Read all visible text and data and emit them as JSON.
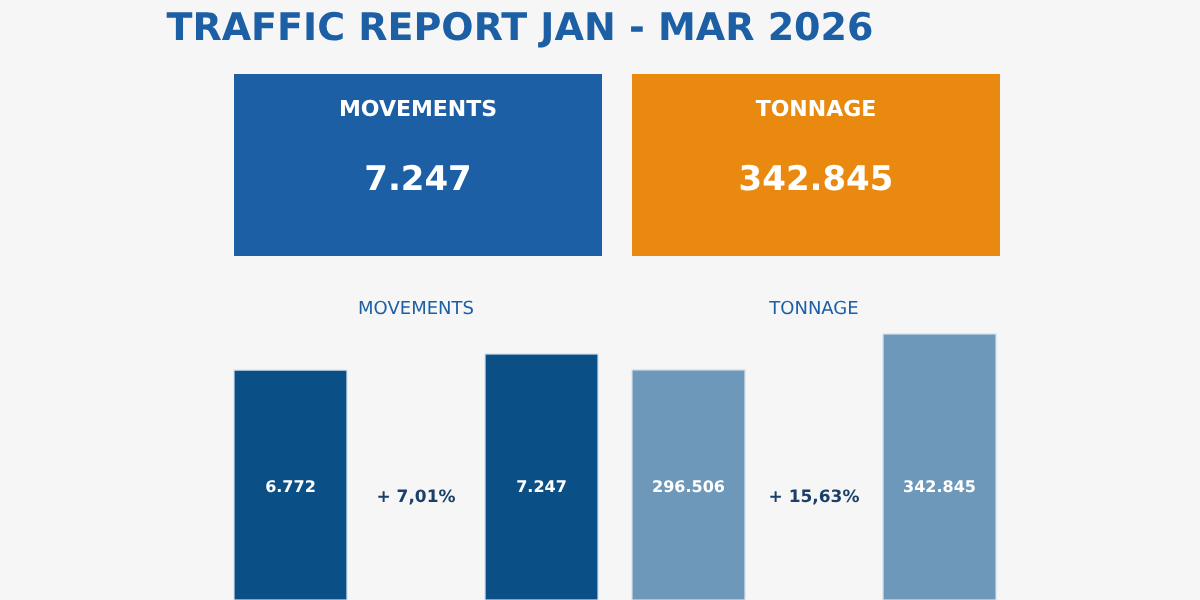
{
  "chart_data": [
    {
      "type": "other",
      "title": "TRAFFIC REPORT JAN - MAR 2026",
      "categories": [
        "MOVEMENTS",
        "TONNAGE"
      ],
      "values": [
        7247,
        342845
      ],
      "value_labels": [
        "7.247",
        "342.845"
      ],
      "colors": [
        "#1c5fa4",
        "#ea890f"
      ]
    },
    {
      "type": "bar",
      "title": "MOVEMENTS",
      "categories": [
        null,
        null
      ],
      "values": [
        6772,
        7247
      ],
      "value_labels": [
        "6.772",
        "7.247"
      ],
      "colors": [
        "#0b4f87",
        "#0b4f87"
      ],
      "annotations": [
        "+ 7,01%"
      ]
    },
    {
      "type": "bar",
      "title": "TONNAGE",
      "categories": [
        null,
        null
      ],
      "values": [
        296506,
        342845
      ],
      "value_labels": [
        "296.506",
        "342.845"
      ],
      "colors": [
        "#6d98ba",
        "#6d98ba"
      ],
      "annotations": [
        "+ 15,63%"
      ]
    }
  ]
}
